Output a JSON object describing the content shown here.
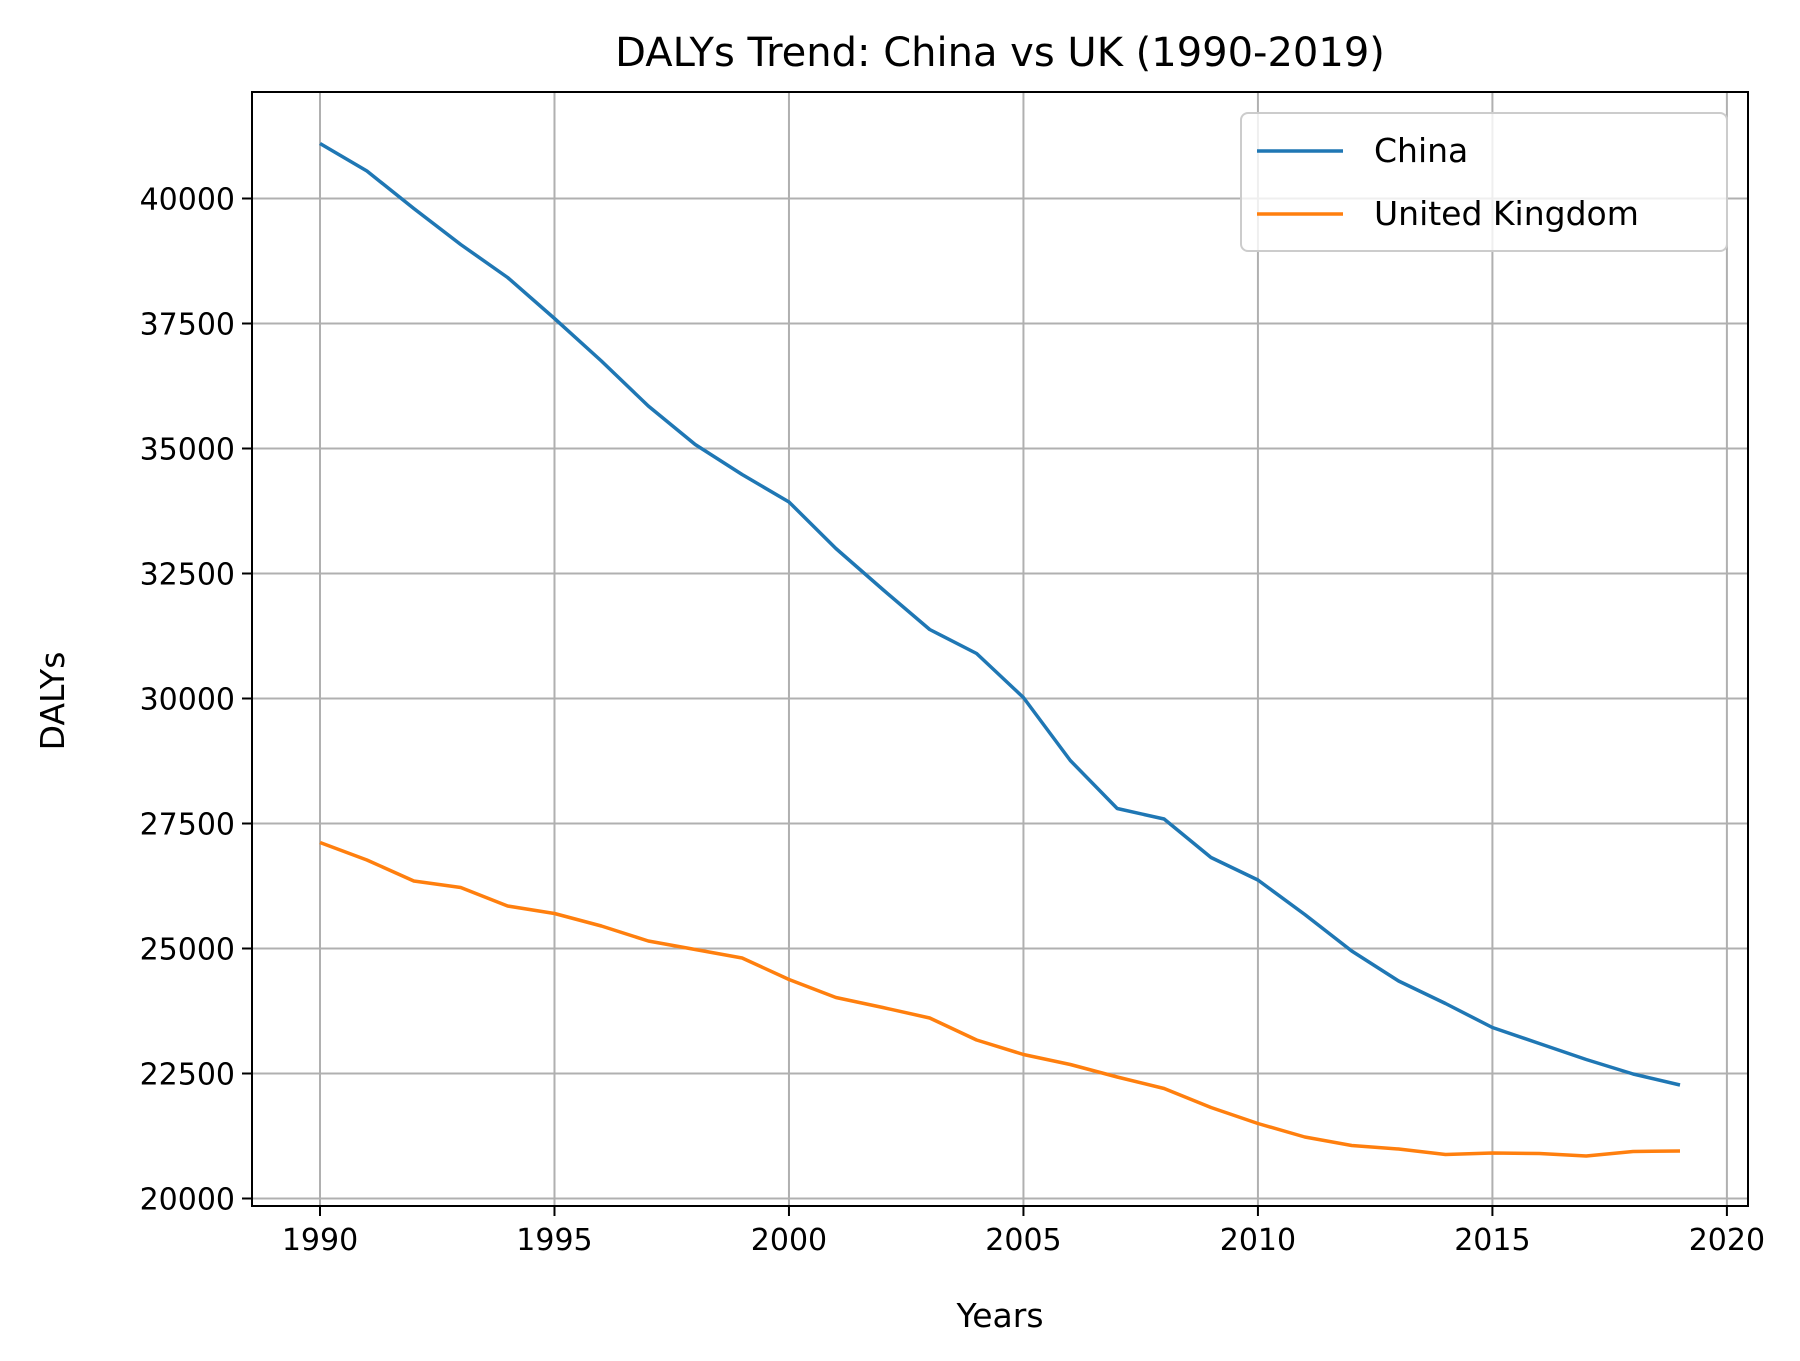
{
  "chart_data": {
    "type": "line",
    "title": "DALYs Trend: China vs UK (1990-2019)",
    "xlabel": "Years",
    "ylabel": "DALYs",
    "xlim": [
      1988.55,
      2020.45
    ],
    "ylim": [
      19850,
      42130
    ],
    "xticks": [
      1990,
      1995,
      2000,
      2005,
      2010,
      2015,
      2020
    ],
    "yticks": [
      20000,
      22500,
      25000,
      27500,
      30000,
      32500,
      35000,
      37500,
      40000
    ],
    "grid": true,
    "legend_position": "top-right",
    "x": [
      1990,
      1991,
      1992,
      1993,
      1994,
      1995,
      1996,
      1997,
      1998,
      1999,
      2000,
      2001,
      2002,
      2003,
      2004,
      2005,
      2006,
      2007,
      2008,
      2009,
      2010,
      2011,
      2012,
      2013,
      2014,
      2015,
      2016,
      2017,
      2018,
      2019
    ],
    "series": [
      {
        "name": "China",
        "color": "#1f77b4",
        "values": [
          41100,
          40550,
          39800,
          39080,
          38420,
          37600,
          36750,
          35850,
          35080,
          34480,
          33930,
          33000,
          32180,
          31380,
          30900,
          30020,
          28760,
          27800,
          27590,
          26820,
          26370,
          25680,
          24950,
          24350,
          23900,
          23420,
          23100,
          22780,
          22490,
          22270
        ]
      },
      {
        "name": "United Kingdom",
        "color": "#ff7f0e",
        "values": [
          27120,
          26770,
          26350,
          26220,
          25850,
          25700,
          25450,
          25150,
          24980,
          24810,
          24380,
          24020,
          23820,
          23610,
          23170,
          22880,
          22680,
          22430,
          22200,
          21820,
          21500,
          21230,
          21060,
          20990,
          20880,
          20910,
          20900,
          20850,
          20940,
          20950
        ]
      }
    ]
  }
}
